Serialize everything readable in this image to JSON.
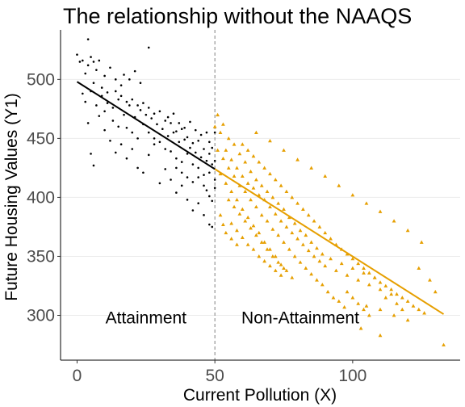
{
  "chart_data": {
    "type": "scatter",
    "title": "The relationship without the NAAQS",
    "xlabel": "Current Pollution (X)",
    "ylabel": "Future Housing Values (Y1)",
    "xlim": [
      -6,
      139
    ],
    "ylim": [
      262,
      542
    ],
    "x_ticks": [
      "0",
      "50",
      "100"
    ],
    "x_tick_values": [
      0,
      50,
      100
    ],
    "y_ticks": [
      "300",
      "350",
      "400",
      "450",
      "500"
    ],
    "y_tick_values": [
      300,
      350,
      400,
      450,
      500
    ],
    "grid": "horizontal",
    "threshold": 50,
    "annotations": [
      {
        "text": "Attainment",
        "x": 25,
        "y": 298
      },
      {
        "text": "Non-Attainment",
        "x": 81,
        "y": 298
      }
    ],
    "series": [
      {
        "role": "attainment",
        "marker": "dot",
        "color": "#000000",
        "trend": {
          "x": [
            0,
            50
          ],
          "y": [
            498,
            424
          ]
        },
        "points": [
          [
            0,
            521
          ],
          [
            1,
            515
          ],
          [
            2,
            516
          ],
          [
            3,
            505
          ],
          [
            4,
            534
          ],
          [
            4,
            512
          ],
          [
            5,
            519
          ],
          [
            6,
            515
          ],
          [
            7,
            508
          ],
          [
            8,
            516
          ],
          [
            10,
            503
          ],
          [
            12,
            510
          ],
          [
            14,
            500
          ],
          [
            16,
            495
          ],
          [
            17,
            504
          ],
          [
            19,
            500
          ],
          [
            21,
            507
          ],
          [
            23,
            497
          ],
          [
            26,
            527
          ],
          [
            2,
            488
          ],
          [
            3,
            481
          ],
          [
            5,
            490
          ],
          [
            7,
            478
          ],
          [
            9,
            486
          ],
          [
            11,
            480
          ],
          [
            13,
            476
          ],
          [
            15,
            483
          ],
          [
            17,
            470
          ],
          [
            19,
            478
          ],
          [
            21,
            468
          ],
          [
            23,
            474
          ],
          [
            25,
            470
          ],
          [
            27,
            467
          ],
          [
            29,
            462
          ],
          [
            31,
            458
          ],
          [
            33,
            452
          ],
          [
            35,
            455
          ],
          [
            37,
            447
          ],
          [
            39,
            449
          ],
          [
            41,
            442
          ],
          [
            43,
            438
          ],
          [
            45,
            434
          ],
          [
            47,
            431
          ],
          [
            49,
            428
          ],
          [
            4,
            463
          ],
          [
            5,
            437
          ],
          [
            6,
            427
          ],
          [
            8,
            469
          ],
          [
            10,
            457
          ],
          [
            12,
            448
          ],
          [
            14,
            438
          ],
          [
            16,
            445
          ],
          [
            18,
            433
          ],
          [
            20,
            441
          ],
          [
            22,
            425
          ],
          [
            24,
            421
          ],
          [
            26,
            436
          ],
          [
            28,
            445
          ],
          [
            30,
            412
          ],
          [
            32,
            424
          ],
          [
            34,
            415
          ],
          [
            36,
            404
          ],
          [
            38,
            410
          ],
          [
            40,
            398
          ],
          [
            42,
            389
          ],
          [
            44,
            395
          ],
          [
            46,
            385
          ],
          [
            48,
            377
          ],
          [
            49,
            375
          ],
          [
            10,
            473
          ],
          [
            13,
            465
          ],
          [
            15,
            460
          ],
          [
            18,
            459
          ],
          [
            20,
            455
          ],
          [
            22,
            450
          ],
          [
            24,
            462
          ],
          [
            26,
            455
          ],
          [
            28,
            450
          ],
          [
            30,
            447
          ],
          [
            32,
            441
          ],
          [
            34,
            439
          ],
          [
            36,
            433
          ],
          [
            38,
            430
          ],
          [
            40,
            437
          ],
          [
            42,
            428
          ],
          [
            44,
            425
          ],
          [
            46,
            419
          ],
          [
            48,
            421
          ],
          [
            50,
            415
          ],
          [
            33,
            468
          ],
          [
            35,
            471
          ],
          [
            37,
            463
          ],
          [
            39,
            459
          ],
          [
            41,
            464
          ],
          [
            43,
            457
          ],
          [
            45,
            453
          ],
          [
            47,
            455
          ],
          [
            48,
            447
          ],
          [
            49,
            442
          ],
          [
            50,
            455
          ],
          [
            36,
            425
          ],
          [
            38,
            421
          ],
          [
            40,
            417
          ],
          [
            42,
            413
          ],
          [
            44,
            417
          ],
          [
            46,
            410
          ],
          [
            47,
            406
          ],
          [
            48,
            401
          ],
          [
            49,
            397
          ],
          [
            50,
            408
          ],
          [
            6,
            497
          ],
          [
            9,
            493
          ],
          [
            11,
            489
          ],
          [
            14,
            490
          ],
          [
            16,
            486
          ],
          [
            18,
            481
          ],
          [
            20,
            483
          ],
          [
            22,
            478
          ],
          [
            24,
            480
          ],
          [
            26,
            476
          ],
          [
            28,
            471
          ],
          [
            30,
            473
          ],
          [
            32,
            465
          ],
          [
            34,
            463
          ],
          [
            36,
            456
          ],
          [
            38,
            458
          ],
          [
            40,
            451
          ],
          [
            42,
            446
          ],
          [
            44,
            448
          ],
          [
            46,
            441
          ],
          [
            48,
            437
          ],
          [
            50,
            431
          ]
        ]
      },
      {
        "role": "non-attainment",
        "marker": "triangle",
        "color": "#E69F00",
        "trend": {
          "x": [
            50,
            133
          ],
          "y": [
            424,
            301
          ]
        },
        "points": [
          [
            50,
            460
          ],
          [
            51,
            470
          ],
          [
            52,
            455
          ],
          [
            53,
            462
          ],
          [
            54,
            440
          ],
          [
            55,
            450
          ],
          [
            56,
            432
          ],
          [
            57,
            445
          ],
          [
            58,
            425
          ],
          [
            59,
            437
          ],
          [
            60,
            418
          ],
          [
            61,
            430
          ],
          [
            62,
            412
          ],
          [
            63,
            422
          ],
          [
            64,
            408
          ],
          [
            65,
            415
          ],
          [
            66,
            402
          ],
          [
            67,
            410
          ],
          [
            68,
            398
          ],
          [
            69,
            405
          ],
          [
            70,
            392
          ],
          [
            71,
            400
          ],
          [
            72,
            386
          ],
          [
            73,
            395
          ],
          [
            74,
            380
          ],
          [
            75,
            390
          ],
          [
            76,
            375
          ],
          [
            77,
            383
          ],
          [
            78,
            370
          ],
          [
            79,
            378
          ],
          [
            80,
            365
          ],
          [
            81,
            372
          ],
          [
            82,
            360
          ],
          [
            83,
            368
          ],
          [
            84,
            355
          ],
          [
            85,
            362
          ],
          [
            86,
            350
          ],
          [
            87,
            357
          ],
          [
            88,
            346
          ],
          [
            89,
            352
          ],
          [
            90,
            342
          ],
          [
            92,
            348
          ],
          [
            94,
            338
          ],
          [
            96,
            344
          ],
          [
            98,
            334
          ],
          [
            100,
            340
          ],
          [
            102,
            330
          ],
          [
            104,
            336
          ],
          [
            106,
            326
          ],
          [
            108,
            332
          ],
          [
            110,
            322
          ],
          [
            112,
            315
          ],
          [
            114,
            318
          ],
          [
            116,
            310
          ],
          [
            118,
            305
          ],
          [
            51,
            440
          ],
          [
            53,
            433
          ],
          [
            55,
            425
          ],
          [
            57,
            418
          ],
          [
            59,
            410
          ],
          [
            61,
            405
          ],
          [
            63,
            398
          ],
          [
            65,
            392
          ],
          [
            67,
            385
          ],
          [
            69,
            380
          ],
          [
            71,
            373
          ],
          [
            73,
            368
          ],
          [
            75,
            362
          ],
          [
            77,
            356
          ],
          [
            79,
            350
          ],
          [
            81,
            345
          ],
          [
            83,
            340
          ],
          [
            85,
            335
          ],
          [
            87,
            330
          ],
          [
            89,
            326
          ],
          [
            91,
            320
          ],
          [
            93,
            315
          ],
          [
            95,
            312
          ],
          [
            97,
            307
          ],
          [
            52,
            420
          ],
          [
            54,
            412
          ],
          [
            56,
            405
          ],
          [
            58,
            398
          ],
          [
            60,
            390
          ],
          [
            62,
            383
          ],
          [
            64,
            376
          ],
          [
            66,
            370
          ],
          [
            68,
            362
          ],
          [
            70,
            356
          ],
          [
            72,
            350
          ],
          [
            74,
            343
          ],
          [
            76,
            338
          ],
          [
            78,
            332
          ],
          [
            55,
            398
          ],
          [
            57,
            392
          ],
          [
            59,
            386
          ],
          [
            61,
            380
          ],
          [
            63,
            374
          ],
          [
            65,
            368
          ],
          [
            67,
            362
          ],
          [
            69,
            356
          ],
          [
            71,
            350
          ],
          [
            73,
            345
          ],
          [
            75,
            340
          ],
          [
            60,
            445
          ],
          [
            62,
            440
          ],
          [
            64,
            435
          ],
          [
            66,
            430
          ],
          [
            68,
            425
          ],
          [
            70,
            420
          ],
          [
            72,
            415
          ],
          [
            74,
            410
          ],
          [
            76,
            405
          ],
          [
            78,
            400
          ],
          [
            80,
            395
          ],
          [
            82,
            390
          ],
          [
            84,
            385
          ],
          [
            86,
            380
          ],
          [
            88,
            375
          ],
          [
            90,
            370
          ],
          [
            92,
            365
          ],
          [
            94,
            360
          ],
          [
            96,
            356
          ],
          [
            98,
            352
          ],
          [
            100,
            348
          ],
          [
            102,
            344
          ],
          [
            104,
            340
          ],
          [
            106,
            336
          ],
          [
            108,
            332
          ],
          [
            110,
            328
          ],
          [
            112,
            325
          ],
          [
            114,
            322
          ],
          [
            116,
            318
          ],
          [
            118,
            315
          ],
          [
            120,
            312
          ],
          [
            122,
            308
          ],
          [
            124,
            305
          ],
          [
            126,
            302
          ],
          [
            56,
            378
          ],
          [
            58,
            372
          ],
          [
            60,
            366
          ],
          [
            62,
            360
          ],
          [
            64,
            356
          ],
          [
            66,
            350
          ],
          [
            68,
            346
          ],
          [
            70,
            342
          ],
          [
            72,
            338
          ],
          [
            74,
            334
          ],
          [
            52,
            385
          ],
          [
            53,
            377
          ],
          [
            54,
            370
          ],
          [
            56,
            365
          ],
          [
            58,
            360
          ],
          [
            65,
            455
          ],
          [
            70,
            448
          ],
          [
            75,
            440
          ],
          [
            80,
            432
          ],
          [
            85,
            425
          ],
          [
            90,
            418
          ],
          [
            95,
            410
          ],
          [
            100,
            402
          ],
          [
            105,
            395
          ],
          [
            110,
            388
          ],
          [
            115,
            380
          ],
          [
            120,
            372
          ],
          [
            125,
            362
          ],
          [
            105,
            308
          ],
          [
            110,
            305
          ],
          [
            115,
            300
          ],
          [
            120,
            296
          ],
          [
            103,
            289
          ],
          [
            110,
            283
          ],
          [
            133,
            275
          ],
          [
            98,
            320
          ],
          [
            100,
            315
          ],
          [
            102,
            310
          ],
          [
            104,
            305
          ],
          [
            106,
            300
          ],
          [
            124,
            340
          ],
          [
            128,
            330
          ],
          [
            130,
            320
          ]
        ]
      }
    ]
  }
}
